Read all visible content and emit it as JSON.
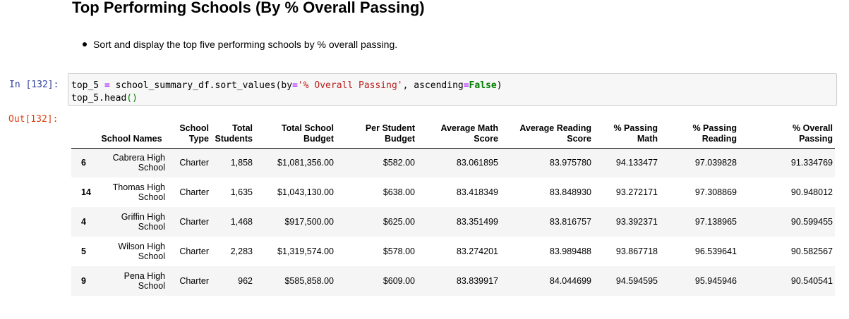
{
  "heading": "Top Performing Schools (By % Overall Passing)",
  "bullet": "Sort and display the top five performing schools by % overall passing.",
  "prompts": {
    "in": "In [132]:",
    "out": "Out[132]:"
  },
  "code": {
    "line1": {
      "a": "top_5 ",
      "eq": "=",
      "b": " school_summary_df.sort_values(by",
      "eq2": "=",
      "str": "'% Overall Passing'",
      "c": ", ascending",
      "eq3": "=",
      "kw": "False",
      "d": ")"
    },
    "line2": {
      "a": "top_5.head",
      "paren": "()"
    }
  },
  "table": {
    "headers": [
      [
        "School Names"
      ],
      [
        "School",
        "Type"
      ],
      [
        "Total",
        "Students"
      ],
      [
        "Total School",
        "Budget"
      ],
      [
        "Per Student",
        "Budget"
      ],
      [
        "Average Math",
        "Score"
      ],
      [
        "Average Reading",
        "Score"
      ],
      [
        "% Passing",
        "Math"
      ],
      [
        "% Passing",
        "Reading"
      ],
      [
        "% Overall",
        "Passing"
      ]
    ],
    "rows": [
      {
        "index": "6",
        "name1": "Cabrera High",
        "name2": "School",
        "type": "Charter",
        "students": "1,858",
        "budget": "$1,081,356.00",
        "per_student": "$582.00",
        "math": "83.061895",
        "reading": "83.975780",
        "pass_math": "94.133477",
        "pass_reading": "97.039828",
        "overall": "91.334769"
      },
      {
        "index": "14",
        "name1": "Thomas High",
        "name2": "School",
        "type": "Charter",
        "students": "1,635",
        "budget": "$1,043,130.00",
        "per_student": "$638.00",
        "math": "83.418349",
        "reading": "83.848930",
        "pass_math": "93.272171",
        "pass_reading": "97.308869",
        "overall": "90.948012"
      },
      {
        "index": "4",
        "name1": "Griffin High",
        "name2": "School",
        "type": "Charter",
        "students": "1,468",
        "budget": "$917,500.00",
        "per_student": "$625.00",
        "math": "83.351499",
        "reading": "83.816757",
        "pass_math": "93.392371",
        "pass_reading": "97.138965",
        "overall": "90.599455"
      },
      {
        "index": "5",
        "name1": "Wilson High",
        "name2": "School",
        "type": "Charter",
        "students": "2,283",
        "budget": "$1,319,574.00",
        "per_student": "$578.00",
        "math": "83.274201",
        "reading": "83.989488",
        "pass_math": "93.867718",
        "pass_reading": "96.539641",
        "overall": "90.582567"
      },
      {
        "index": "9",
        "name1": "Pena High",
        "name2": "School",
        "type": "Charter",
        "students": "962",
        "budget": "$585,858.00",
        "per_student": "$609.00",
        "math": "83.839917",
        "reading": "84.044699",
        "pass_math": "94.594595",
        "pass_reading": "95.945946",
        "overall": "90.540541"
      }
    ]
  }
}
